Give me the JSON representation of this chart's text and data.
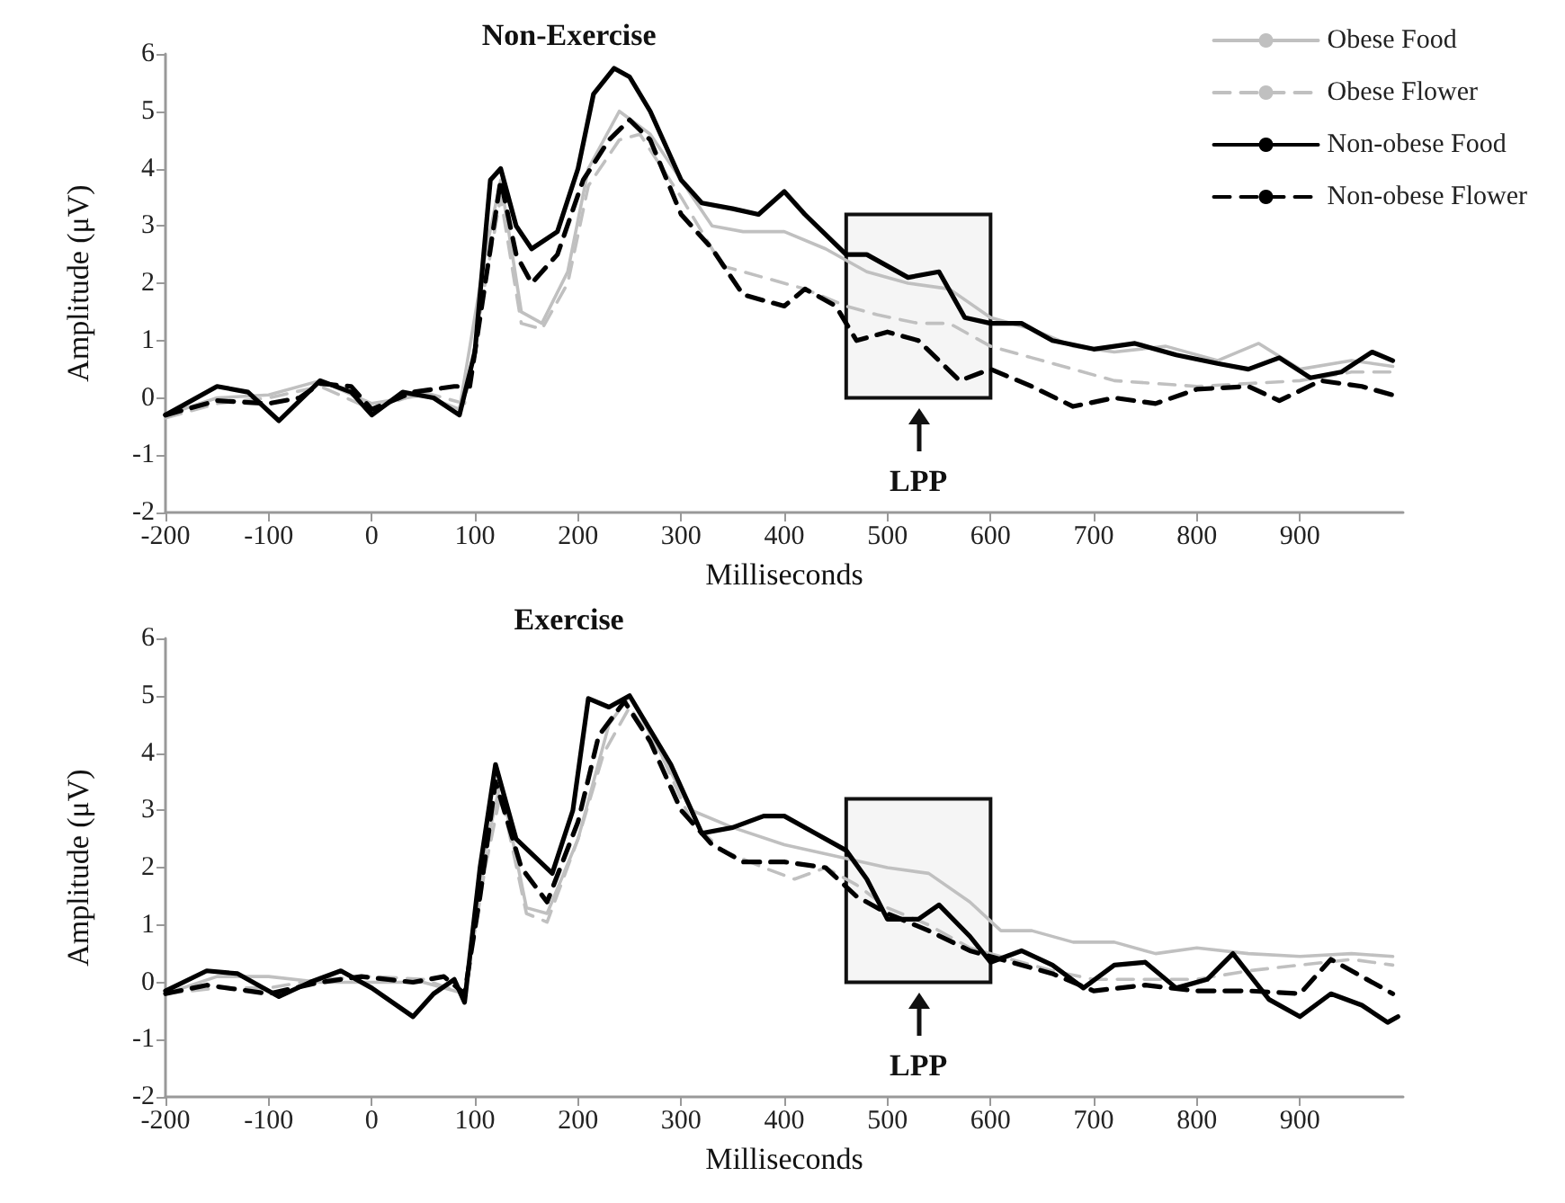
{
  "chart_data": [
    {
      "type": "line",
      "title": "Non-Exercise",
      "xlabel": "Milliseconds",
      "ylabel": "Amplitude (μV)",
      "xlim": [
        -200,
        1000
      ],
      "xticks": [
        -200,
        -100,
        0,
        100,
        200,
        300,
        400,
        500,
        600,
        700,
        800,
        900
      ],
      "ylim": [
        -2,
        6
      ],
      "yticks": [
        -2,
        -1,
        0,
        1,
        2,
        3,
        4,
        5,
        6
      ],
      "grid": false,
      "legend": "top right",
      "marker": "none",
      "bands": [
        {
          "axis": "x",
          "from": 460,
          "to": 600,
          "label": "LPP"
        }
      ],
      "series": [
        {
          "name": "Obese Food",
          "color": "#c0c0c0",
          "line_style": "solid",
          "x": [
            -200,
            -150,
            -100,
            -50,
            0,
            50,
            85,
            110,
            125,
            145,
            165,
            190,
            210,
            240,
            270,
            300,
            330,
            360,
            400,
            440,
            480,
            520,
            560,
            600,
            640,
            680,
            720,
            770,
            820,
            860,
            900,
            950,
            990
          ],
          "values": [
            -0.3,
            0,
            0.05,
            0.3,
            -0.1,
            0.05,
            -0.2,
            2.5,
            3.8,
            1.5,
            1.3,
            2.2,
            4.0,
            5.0,
            4.6,
            3.8,
            3.0,
            2.9,
            2.9,
            2.6,
            2.2,
            2.0,
            1.9,
            1.4,
            1.2,
            0.9,
            0.8,
            0.9,
            0.65,
            0.95,
            0.5,
            0.65,
            0.55
          ]
        },
        {
          "name": "Obese Flower",
          "color": "#c0c0c0",
          "line_style": "dashed",
          "x": [
            -200,
            -150,
            -100,
            -50,
            0,
            50,
            90,
            110,
            125,
            145,
            165,
            190,
            210,
            240,
            260,
            300,
            340,
            380,
            420,
            460,
            490,
            530,
            560,
            600,
            640,
            680,
            720,
            760,
            800,
            850,
            900,
            950,
            990
          ],
          "values": [
            -0.35,
            -0.1,
            0,
            0.2,
            -0.2,
            0.1,
            -0.1,
            2.0,
            3.5,
            1.3,
            1.2,
            2.0,
            3.7,
            4.5,
            4.6,
            3.5,
            2.3,
            2.1,
            1.9,
            1.6,
            1.45,
            1.3,
            1.3,
            0.9,
            0.7,
            0.5,
            0.3,
            0.25,
            0.2,
            0.25,
            0.3,
            0.45,
            0.45
          ]
        },
        {
          "name": "Non-obese Food",
          "color": "#000000",
          "line_style": "solid",
          "x": [
            -200,
            -150,
            -120,
            -90,
            -50,
            -20,
            0,
            30,
            60,
            85,
            100,
            115,
            125,
            140,
            155,
            180,
            200,
            215,
            235,
            250,
            270,
            300,
            320,
            350,
            375,
            400,
            420,
            460,
            480,
            520,
            550,
            575,
            600,
            630,
            660,
            700,
            740,
            780,
            820,
            850,
            880,
            910,
            940,
            970,
            990
          ],
          "values": [
            -0.3,
            0.2,
            0.1,
            -0.4,
            0.3,
            0.1,
            -0.3,
            0.1,
            0,
            -0.3,
            0.8,
            3.8,
            4.0,
            3.0,
            2.6,
            2.9,
            4.0,
            5.3,
            5.75,
            5.6,
            5.0,
            3.8,
            3.4,
            3.3,
            3.2,
            3.6,
            3.2,
            2.5,
            2.5,
            2.1,
            2.2,
            1.4,
            1.3,
            1.3,
            1.0,
            0.85,
            0.95,
            0.75,
            0.6,
            0.5,
            0.7,
            0.35,
            0.45,
            0.8,
            0.65
          ]
        },
        {
          "name": "Non-obese Flower",
          "color": "#000000",
          "line_style": "dashed",
          "x": [
            -200,
            -150,
            -100,
            -70,
            -50,
            -20,
            0,
            40,
            80,
            95,
            110,
            125,
            140,
            155,
            180,
            205,
            230,
            250,
            270,
            300,
            330,
            360,
            400,
            420,
            450,
            470,
            500,
            530,
            570,
            600,
            640,
            680,
            720,
            760,
            800,
            850,
            880,
            920,
            960,
            990
          ],
          "values": [
            -0.3,
            -0.05,
            -0.1,
            0,
            0.25,
            0.2,
            -0.2,
            0.1,
            0.2,
            0.2,
            2.0,
            3.8,
            2.5,
            2.0,
            2.5,
            3.8,
            4.5,
            4.85,
            4.5,
            3.2,
            2.6,
            1.8,
            1.6,
            1.9,
            1.6,
            1.0,
            1.15,
            1.0,
            0.3,
            0.5,
            0.2,
            -0.15,
            0,
            -0.1,
            0.15,
            0.2,
            -0.05,
            0.3,
            0.2,
            0.05
          ]
        }
      ]
    },
    {
      "type": "line",
      "title": "Exercise",
      "xlabel": "Milliseconds",
      "ylabel": "Amplitude (μV)",
      "xlim": [
        -200,
        1000
      ],
      "xticks": [
        -200,
        -100,
        0,
        100,
        200,
        300,
        400,
        500,
        600,
        700,
        800,
        900
      ],
      "ylim": [
        -2,
        6
      ],
      "yticks": [
        -2,
        -1,
        0,
        1,
        2,
        3,
        4,
        5,
        6
      ],
      "grid": false,
      "marker": "none",
      "bands": [
        {
          "axis": "x",
          "from": 460,
          "to": 600,
          "label": "LPP"
        }
      ],
      "series": [
        {
          "color": "#c0c0c0",
          "line_style": "solid",
          "x": [
            -200,
            -150,
            -100,
            -50,
            0,
            50,
            90,
            110,
            125,
            150,
            170,
            200,
            230,
            250,
            280,
            310,
            350,
            400,
            450,
            500,
            540,
            580,
            610,
            640,
            680,
            720,
            760,
            800,
            850,
            900,
            950,
            990
          ],
          "values": [
            -0.2,
            0.1,
            0.1,
            0,
            0,
            0,
            -0.2,
            2.3,
            3.5,
            1.3,
            1.2,
            2.5,
            4.5,
            5.0,
            4.0,
            3.0,
            2.7,
            2.4,
            2.2,
            2.0,
            1.9,
            1.4,
            0.9,
            0.9,
            0.7,
            0.7,
            0.5,
            0.6,
            0.5,
            0.45,
            0.5,
            0.45
          ]
        },
        {
          "color": "#c0c0c0",
          "line_style": "dashed",
          "x": [
            -200,
            -150,
            -100,
            -50,
            0,
            50,
            90,
            110,
            125,
            150,
            170,
            200,
            225,
            250,
            280,
            310,
            340,
            380,
            410,
            440,
            470,
            500,
            540,
            580,
            620,
            660,
            700,
            750,
            800,
            850,
            900,
            950,
            990
          ],
          "values": [
            -0.2,
            -0.1,
            -0.1,
            0.05,
            0.1,
            0.05,
            -0.2,
            2.0,
            3.3,
            1.2,
            1.05,
            2.5,
            4.0,
            4.8,
            4.0,
            2.8,
            2.3,
            2.0,
            1.8,
            2.0,
            1.7,
            1.3,
            1.0,
            0.6,
            0.4,
            0.2,
            0.05,
            0.05,
            0.05,
            0.2,
            0.3,
            0.4,
            0.3
          ]
        },
        {
          "color": "#000000",
          "line_style": "solid",
          "x": [
            -200,
            -160,
            -130,
            -90,
            -60,
            -30,
            0,
            40,
            60,
            80,
            90,
            105,
            120,
            140,
            175,
            195,
            210,
            230,
            250,
            270,
            290,
            320,
            350,
            380,
            400,
            430,
            460,
            480,
            500,
            530,
            550,
            580,
            600,
            630,
            660,
            690,
            720,
            750,
            780,
            810,
            835,
            870,
            900,
            930,
            960,
            985,
            995
          ],
          "values": [
            -0.15,
            0.2,
            0.15,
            -0.25,
            0,
            0.2,
            -0.1,
            -0.6,
            -0.2,
            0.05,
            -0.35,
            2.0,
            3.8,
            2.5,
            1.9,
            3.0,
            4.95,
            4.8,
            5.0,
            4.4,
            3.8,
            2.6,
            2.7,
            2.9,
            2.9,
            2.6,
            2.3,
            1.8,
            1.1,
            1.1,
            1.35,
            0.8,
            0.35,
            0.55,
            0.3,
            -0.1,
            0.3,
            0.35,
            -0.1,
            0.05,
            0.5,
            -0.3,
            -0.6,
            -0.2,
            -0.4,
            -0.7,
            -0.6
          ]
        },
        {
          "color": "#000000",
          "line_style": "dashed",
          "x": [
            -200,
            -160,
            -100,
            -50,
            -10,
            40,
            70,
            90,
            105,
            120,
            145,
            170,
            200,
            220,
            245,
            270,
            300,
            330,
            360,
            400,
            440,
            470,
            500,
            540,
            580,
            620,
            660,
            700,
            750,
            800,
            850,
            900,
            930,
            960,
            990
          ],
          "values": [
            -0.2,
            -0.05,
            -0.2,
            0,
            0.1,
            0,
            0.1,
            -0.2,
            1.5,
            3.5,
            2.0,
            1.4,
            2.8,
            4.3,
            4.9,
            4.2,
            3.0,
            2.4,
            2.1,
            2.1,
            2.0,
            1.5,
            1.2,
            0.9,
            0.55,
            0.35,
            0.15,
            -0.15,
            -0.05,
            -0.15,
            -0.15,
            -0.2,
            0.4,
            0.1,
            -0.2
          ]
        }
      ]
    }
  ]
}
